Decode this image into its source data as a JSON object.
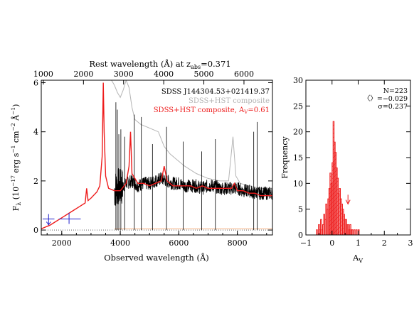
{
  "chart_data": [
    {
      "type": "line",
      "top_axis_label": "Rest wavelength (Å) at z",
      "top_axis_label_sub": "abs",
      "top_axis_label_tail": "=0.371",
      "xlabel": "Observed wavelength (Å)",
      "ylabel_main": "F",
      "ylabel_sub": "λ",
      "ylabel_units": "(10",
      "ylabel_exp1": "−17",
      "ylabel_mid1": " erg s",
      "ylabel_exp2": "−1",
      "ylabel_mid2": " cm",
      "ylabel_exp3": "−2",
      "ylabel_mid3": " Å",
      "ylabel_exp4": "−1",
      "ylabel_end": ")",
      "xlim": [
        1300,
        9200
      ],
      "ylim": [
        -0.2,
        6.1
      ],
      "top_xlim": [
        948,
        6710
      ],
      "x_ticks": [
        2000,
        4000,
        6000,
        8000
      ],
      "x_tick_labels": [
        "2000",
        "4000",
        "6000",
        "8000"
      ],
      "y_ticks": [
        0,
        2,
        4,
        6
      ],
      "y_tick_labels": [
        "0",
        "2",
        "4",
        "6"
      ],
      "top_ticks": [
        1000,
        2000,
        3000,
        4000,
        5000,
        6000
      ],
      "top_tick_labels": [
        "1000",
        "2000",
        "3000",
        "4000",
        "5000",
        "6000"
      ],
      "legend_position": "top-right",
      "legend": [
        {
          "label": "SDSS J144304.53+021419.37",
          "color": "#000000"
        },
        {
          "label": "SDSS+HST composite",
          "color": "#b4b4b4"
        },
        {
          "label_pre": "SDSS+HST composite, A",
          "label_sub": "V",
          "label_post": "=0.61",
          "color": "#ee1c1c"
        }
      ],
      "series": [
        {
          "name": "SDSS J144304.53+021419.37",
          "color": "#000000",
          "x": [
            3800,
            3900,
            4000,
            4200,
            4400,
            4600,
            4800,
            5000,
            5200,
            5400,
            5600,
            5800,
            6000,
            6200,
            6400,
            6600,
            6800,
            7000,
            7200,
            7400,
            7600,
            7800,
            8000,
            8200,
            8400,
            8600,
            8800,
            9000,
            9200
          ],
          "y": [
            1.6,
            1.8,
            1.7,
            1.9,
            2.0,
            1.8,
            1.9,
            1.9,
            2.0,
            2.1,
            2.0,
            1.9,
            1.9,
            1.8,
            1.8,
            1.8,
            1.7,
            1.8,
            1.8,
            1.7,
            1.7,
            1.7,
            1.7,
            1.6,
            1.6,
            1.5,
            1.5,
            1.5,
            1.5
          ]
        },
        {
          "name": "SDSS+HST composite",
          "color": "#b4b4b4",
          "x": [
            3700,
            3800,
            3900,
            4000,
            4100,
            4200,
            4300,
            4400,
            4500,
            4700,
            4900,
            5100,
            5300,
            5500,
            5700,
            5900,
            6200,
            6600,
            7000,
            7400,
            7700,
            7850,
            7950,
            8100,
            8400,
            8800,
            9200
          ],
          "y": [
            6.1,
            5.9,
            5.6,
            5.4,
            5.7,
            6.1,
            5.8,
            5.0,
            4.5,
            4.3,
            4.2,
            4.1,
            4.0,
            3.4,
            3.1,
            2.9,
            2.6,
            2.3,
            2.1,
            2.0,
            2.0,
            3.8,
            2.2,
            1.9,
            1.8,
            1.7,
            1.7
          ]
        },
        {
          "name": "SDSS+HST composite, AV=0.61",
          "color": "#ee1c1c",
          "x": [
            1300,
            1400,
            1600,
            1800,
            2000,
            2200,
            2400,
            2600,
            2800,
            2850,
            2900,
            3000,
            3200,
            3300,
            3380,
            3420,
            3450,
            3500,
            3600,
            3800,
            4000,
            4200,
            4300,
            4350,
            4400,
            4600,
            4800,
            5000,
            5200,
            5400,
            5500,
            5600,
            5800,
            6000,
            6200,
            6400,
            6600,
            6800,
            7000,
            7200,
            7400,
            7600,
            7800,
            7900,
            8000,
            8200,
            8400,
            8600,
            8800,
            9000,
            9200
          ],
          "y": [
            0.05,
            0.1,
            0.2,
            0.35,
            0.5,
            0.65,
            0.8,
            0.95,
            1.1,
            1.7,
            1.2,
            1.3,
            1.55,
            1.8,
            3.0,
            6.0,
            4.0,
            2.2,
            1.7,
            1.6,
            1.6,
            1.9,
            2.6,
            4.0,
            2.3,
            1.9,
            1.9,
            1.8,
            1.9,
            2.0,
            2.6,
            2.0,
            1.8,
            1.8,
            1.8,
            1.8,
            1.7,
            1.8,
            1.7,
            1.7,
            1.7,
            1.7,
            1.7,
            1.9,
            1.6,
            1.6,
            1.5,
            1.5,
            1.4,
            1.4,
            1.4
          ]
        }
      ],
      "hst_points": {
        "color": "#2020cc",
        "x": [
          1550,
          2250
        ],
        "y": [
          0.45,
          0.45
        ],
        "xerr": [
          [
            1350,
            1750
          ],
          [
            1900,
            2650
          ]
        ],
        "yerr": [
          [
            0.2,
            0.65
          ],
          [
            0.25,
            0.7
          ]
        ],
        "upper_limit": [
          true,
          false
        ]
      },
      "zero_line": {
        "y": 0,
        "style": "dotted"
      },
      "orange_line": {
        "y": 0.05,
        "x_from": 3800,
        "x_to": 9200,
        "color": "#f4b183"
      }
    },
    {
      "type": "bar",
      "xlabel_main": "A",
      "xlabel_sub": "V",
      "ylabel": "Frequency",
      "xlim": [
        -1,
        3
      ],
      "ylim": [
        0,
        30
      ],
      "x_ticks": [
        -1,
        0,
        1,
        2,
        3
      ],
      "x_tick_labels": [
        "−1",
        "0",
        "1",
        "2",
        "3"
      ],
      "y_ticks": [
        0,
        5,
        10,
        15,
        20,
        25,
        30
      ],
      "y_tick_labels": [
        "0",
        "5",
        "10",
        "15",
        "20",
        "25",
        "30"
      ],
      "stats": {
        "n": "N=223",
        "mean": "〈〉=−0.029",
        "sigma": "σ=0.237"
      },
      "color": "#ee1c1c",
      "bin_width": 0.04,
      "bin_start": -0.6,
      "values": [
        1,
        0,
        2,
        1,
        3,
        1,
        2,
        4,
        3,
        6,
        5,
        7,
        9,
        12,
        10,
        14,
        22,
        18,
        16,
        13,
        11,
        8,
        9,
        7,
        6,
        5,
        4,
        3,
        3,
        2,
        2,
        1,
        2,
        1,
        1,
        0,
        1,
        0,
        1,
        0,
        1
      ],
      "hatched_bins_from": -0.15,
      "hatched_bins_to": 0.45,
      "marker_arrow_x": 0.61
    }
  ]
}
